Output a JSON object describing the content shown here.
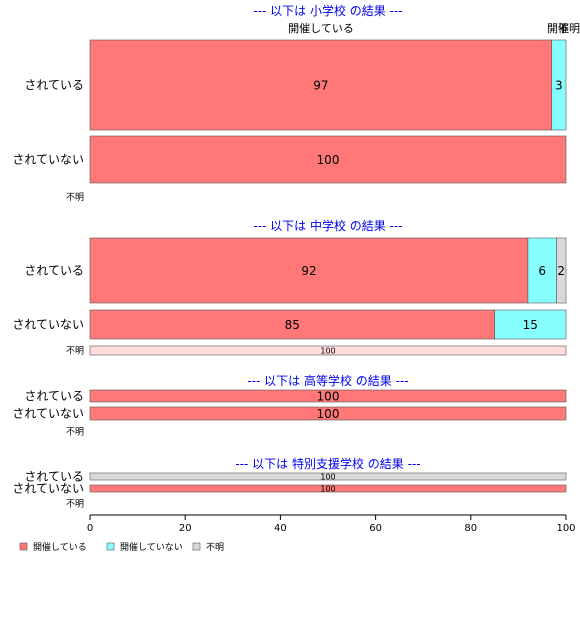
{
  "chart_data": {
    "type": "bar",
    "orientation": "horizontal",
    "stacked": true,
    "xlim": [
      0,
      100
    ],
    "x_ticks": [
      "0",
      "20",
      "40",
      "60",
      "80",
      "100"
    ],
    "legend": {
      "placement": "bottom-left",
      "entries": [
        {
          "label": "開催している",
          "color": "#ff7777"
        },
        {
          "label": "開催していない",
          "color": "#88ffff"
        },
        {
          "label": "不明",
          "color": "#d9d9d9"
        }
      ]
    },
    "column_headers": [
      "開催している",
      "開催",
      "不明"
    ],
    "panels": [
      {
        "title": "--- 以下は 小学校 の結果 ---",
        "rows": [
          {
            "label": "されている",
            "values": [
              97,
              3,
              0
            ],
            "labels": [
              "97",
              "3",
              ""
            ]
          },
          {
            "label": "されていない",
            "values": [
              100,
              0,
              0
            ],
            "labels": [
              "100",
              "",
              ""
            ]
          },
          {
            "label": "不明",
            "values": [
              0,
              0,
              0
            ],
            "labels": [
              "",
              "",
              ""
            ]
          }
        ]
      },
      {
        "title": "--- 以下は 中学校 の結果 ---",
        "rows": [
          {
            "label": "されている",
            "values": [
              92,
              6,
              2
            ],
            "labels": [
              "92",
              "6",
              "2"
            ]
          },
          {
            "label": "されていない",
            "values": [
              85,
              15,
              0
            ],
            "labels": [
              "85",
              "15",
              ""
            ]
          },
          {
            "label": "不明",
            "values": [
              100,
              0,
              0
            ],
            "labels": [
              "100",
              "",
              ""
            ],
            "faded": true
          }
        ]
      },
      {
        "title": "--- 以下は 高等学校 の結果 ---",
        "rows": [
          {
            "label": "されている",
            "values": [
              100,
              0,
              0
            ],
            "labels": [
              "100",
              "",
              ""
            ]
          },
          {
            "label": "されていない",
            "values": [
              100,
              0,
              0
            ],
            "labels": [
              "100",
              "",
              ""
            ]
          },
          {
            "label": "不明",
            "values": [
              0,
              0,
              0
            ],
            "labels": [
              "",
              "",
              ""
            ]
          }
        ]
      },
      {
        "title": "--- 以下は 特別支援学校 の結果 ---",
        "rows": [
          {
            "label": "されている",
            "values": [
              0,
              0,
              100
            ],
            "labels": [
              "100",
              "",
              ""
            ]
          },
          {
            "label": "されていない",
            "values": [
              100,
              0,
              0
            ],
            "labels": [
              "100",
              "",
              ""
            ]
          },
          {
            "label": "不明",
            "values": [
              0,
              0,
              0
            ],
            "labels": [
              "",
              "",
              ""
            ]
          }
        ]
      }
    ]
  }
}
